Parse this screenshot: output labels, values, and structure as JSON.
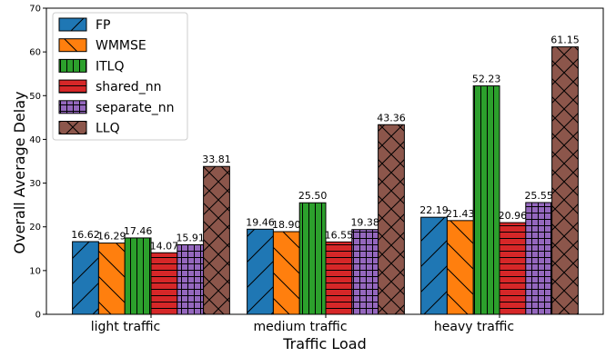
{
  "chart_data": {
    "type": "bar",
    "title": "",
    "xlabel": "Traffic Load",
    "ylabel": "Overall Average Delay",
    "ylim": [
      0,
      70
    ],
    "yticks": [
      0,
      10,
      20,
      30,
      40,
      50,
      60,
      70
    ],
    "categories": [
      "light traffic",
      "medium traffic",
      "heavy traffic"
    ],
    "legend_position": "top-left",
    "grid": false,
    "series": [
      {
        "name": "FP",
        "color": "#1f77b4",
        "hatch": "forward-diagonal",
        "values": [
          16.62,
          19.46,
          22.19
        ]
      },
      {
        "name": "WMMSE",
        "color": "#ff7f0e",
        "hatch": "back-diagonal",
        "values": [
          16.29,
          18.9,
          21.43
        ]
      },
      {
        "name": "ITLQ",
        "color": "#2ca02c",
        "hatch": "vertical",
        "values": [
          17.46,
          25.5,
          52.23
        ]
      },
      {
        "name": "shared_nn",
        "color": "#d62728",
        "hatch": "horizontal",
        "values": [
          14.07,
          16.55,
          20.96
        ]
      },
      {
        "name": "separate_nn",
        "color": "#9467bd",
        "hatch": "grid",
        "values": [
          15.91,
          19.38,
          25.55
        ]
      },
      {
        "name": "LLQ",
        "color": "#8c564b",
        "hatch": "cross-diagonal",
        "values": [
          33.81,
          43.36,
          61.15
        ]
      }
    ]
  }
}
